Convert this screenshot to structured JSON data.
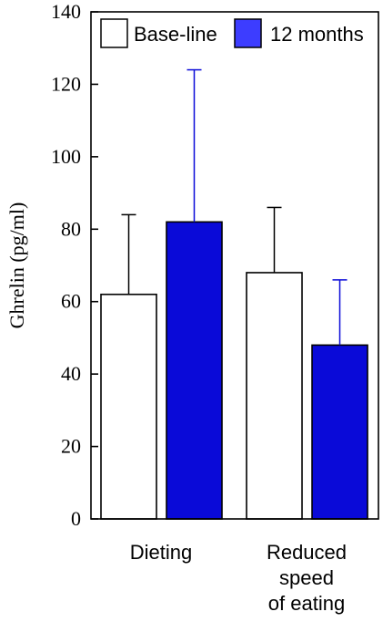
{
  "chart_data": {
    "type": "bar",
    "ylabel": "Ghrelin (pg/ml)",
    "ylim": [
      0,
      140
    ],
    "yticks": [
      0,
      20,
      40,
      60,
      80,
      100,
      120,
      140
    ],
    "grid": false,
    "legend_position": "top",
    "categories": [
      [
        "Dieting"
      ],
      [
        "Reduced",
        "speed",
        "of eating"
      ]
    ],
    "series": [
      {
        "name": "Base-line",
        "color": "#ffffff",
        "values": [
          62,
          68
        ],
        "error": [
          22,
          18
        ]
      },
      {
        "name": "12 months",
        "color": "#0a0ad8",
        "values": [
          82,
          48
        ],
        "error": [
          42,
          18
        ]
      }
    ]
  }
}
